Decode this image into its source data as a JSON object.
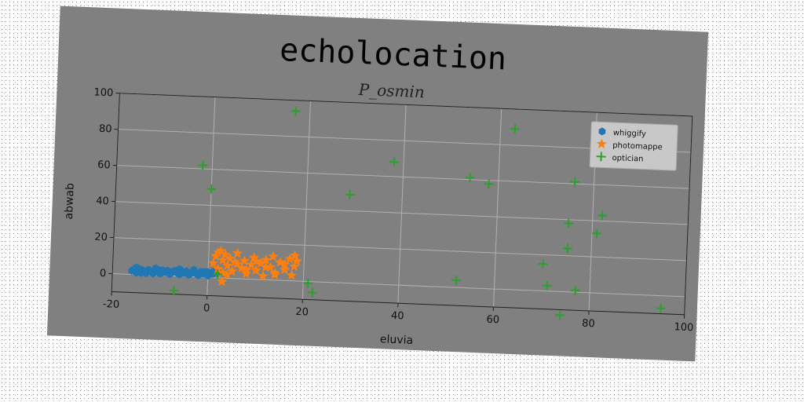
{
  "chart_data": {
    "type": "scatter",
    "title": "echolocation",
    "subtitle": "P_osmin",
    "xlabel": "eluvia",
    "ylabel": "abwab",
    "xlim": [
      -20,
      100
    ],
    "ylim": [
      -10,
      100
    ],
    "xticks": [
      -20,
      0,
      20,
      40,
      60,
      80,
      100
    ],
    "yticks": [
      0,
      20,
      40,
      60,
      80,
      100
    ],
    "grid": true,
    "legend_position": "top-right",
    "series": [
      {
        "name": "whiggify",
        "marker": "hexagon",
        "color": "#1f77b4",
        "x": [
          -16,
          -15.5,
          -15,
          -14.5,
          -14,
          -13.5,
          -13,
          -12.5,
          -12,
          -11.5,
          -11,
          -10.5,
          -10,
          -9.5,
          -9,
          -8.5,
          -8,
          -7.5,
          -7,
          -6.5,
          -6,
          -5.5,
          -5,
          -4.5,
          -4,
          -3.5,
          -3,
          -2.5,
          -2,
          -1.5,
          -1,
          -0.5,
          0,
          0.5,
          1,
          1.5,
          2,
          -15,
          -13,
          -11,
          -9,
          -7,
          -5,
          -3,
          -1,
          1,
          -14,
          -12,
          -10,
          -8,
          -6,
          -4,
          -2,
          0
        ],
        "y": [
          2,
          3,
          1,
          2,
          3,
          2,
          1,
          3,
          2,
          1,
          3,
          2,
          1,
          3,
          2,
          3,
          1,
          2,
          3,
          2,
          1,
          3,
          2,
          3,
          1,
          2,
          3,
          2,
          1,
          3,
          2,
          3,
          1,
          2,
          3,
          4,
          3,
          4,
          1,
          4,
          2,
          3,
          2,
          4,
          3,
          2,
          1,
          2,
          3,
          1,
          4,
          2,
          1,
          3
        ]
      },
      {
        "name": "photomappe",
        "marker": "star",
        "color": "#ff7f0e",
        "x": [
          1,
          1.5,
          2,
          2.5,
          3,
          3,
          3.5,
          4,
          4.5,
          5,
          5.5,
          6,
          7,
          7.5,
          8,
          9,
          9.5,
          10,
          11,
          11.5,
          12,
          13,
          13.5,
          14,
          15,
          16,
          17,
          17.5,
          18,
          18.5,
          2,
          4,
          6,
          8,
          10,
          12,
          14,
          16,
          18,
          3
        ],
        "y": [
          8,
          12,
          5,
          15,
          10,
          3,
          13,
          7,
          11,
          4,
          9,
          14,
          6,
          10,
          3,
          8,
          12,
          5,
          9,
          2,
          11,
          7,
          13,
          4,
          10,
          6,
          12,
          3,
          8,
          11,
          14,
          2,
          8,
          5,
          10,
          7,
          3,
          9,
          14,
          -2
        ]
      },
      {
        "name": "optician",
        "marker": "plus",
        "color": "#2ca02c",
        "x": [
          17,
          -2,
          0,
          2,
          -7,
          22,
          21,
          29,
          38,
          52,
          54,
          58,
          63,
          70,
          71,
          74,
          75,
          75,
          76,
          77,
          81,
          82,
          95
        ],
        "y": [
          94,
          62,
          49,
          2,
          -8,
          -6,
          -1,
          49,
          68,
          4,
          61,
          58,
          89,
          15,
          3,
          -13,
          38,
          24,
          61,
          1,
          33,
          43,
          -7
        ]
      }
    ]
  }
}
